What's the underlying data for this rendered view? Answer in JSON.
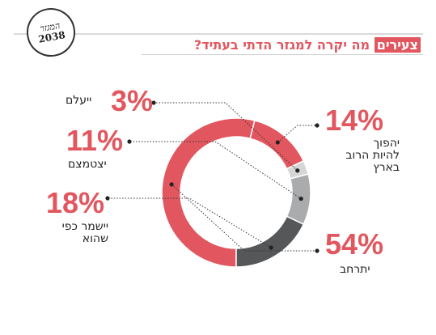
{
  "header": {
    "badge_line1": "המגזר",
    "badge_line2": "2038",
    "title_tag": "צעירים",
    "title_question": "מה יקרה למגזר הדתי בעתיד?"
  },
  "colors": {
    "accent": "#e2575f",
    "dark": "#555759",
    "mid": "#a9abad",
    "light": "#d6d6d6"
  },
  "chart_data": {
    "type": "pie",
    "variant": "donut",
    "title": "מה יקרה למגזר הדתי בעתיד?",
    "categories": [
      "יתרחב",
      "יהפוך להיות הרוב בארץ",
      "ייעלם",
      "יצטמצם",
      "יישמר כפי שהוא"
    ],
    "values": [
      54,
      14,
      3,
      11,
      18
    ],
    "value_labels": [
      "54%",
      "14%",
      "3%",
      "11%",
      "18%"
    ],
    "label_lines": [
      [
        "יתרחב"
      ],
      [
        "יהפוך",
        "להיות הרוב",
        "בארץ"
      ],
      [
        "ייעלם"
      ],
      [
        "יצטמצם"
      ],
      [
        "יישמר כפי",
        "שהוא"
      ]
    ]
  }
}
